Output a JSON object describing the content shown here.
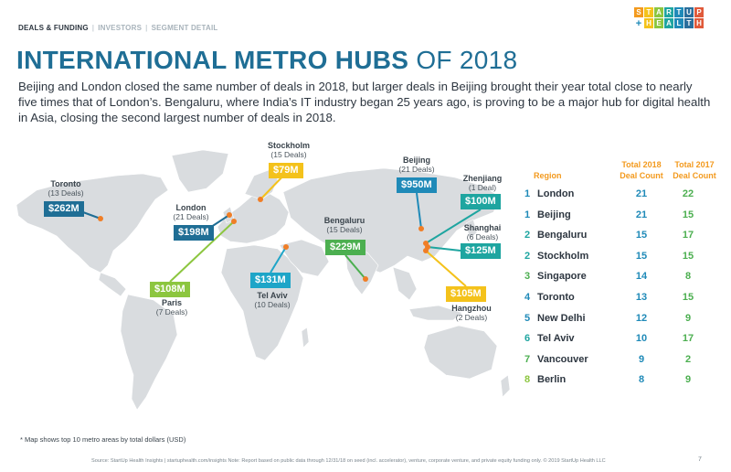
{
  "nav": {
    "items": [
      {
        "label": "DEALS & FUNDING",
        "active": true
      },
      {
        "label": "INVESTORS",
        "active": false
      },
      {
        "label": "SEGMENT DETAIL",
        "active": false
      }
    ]
  },
  "logo": {
    "top": [
      "S",
      "T",
      "A",
      "R",
      "T",
      "U",
      "P"
    ],
    "plus": "+",
    "bottom": [
      "H",
      "E",
      "A",
      "L",
      "T",
      "H"
    ],
    "colors": [
      "#f39a1e",
      "#f4c21b",
      "#8cc63f",
      "#1ea5a0",
      "#1f8ab8",
      "#2a6e9c",
      "#e05a3a"
    ]
  },
  "title": {
    "bold": "INTERNATIONAL METRO HUBS",
    "thin": " OF 2018"
  },
  "subtitle": "Beijing and London closed the same number of deals in 2018, but larger deals in Beijing brought their year total close to nearly five times that of London’s. Bengaluru, where India’s IT industry began 25 years ago, is proving to be a major hub for digital health in Asia, closing the second largest number of deals in 2018.",
  "map_labels": [
    {
      "id": "toronto",
      "name": "Toronto",
      "deals": "(13 Deals)",
      "amount": "$262M",
      "color": "#1f6e95"
    },
    {
      "id": "london",
      "name": "London",
      "deals": "(21 Deals)",
      "amount": "$198M",
      "color": "#1f6e95"
    },
    {
      "id": "stockholm",
      "name": "Stockholm",
      "deals": "(15 Deals)",
      "amount": "$79M",
      "color": "#f4c21b"
    },
    {
      "id": "paris",
      "name": "Paris",
      "deals": "(7 Deals)",
      "amount": "$108M",
      "color": "#8cc63f"
    },
    {
      "id": "telaviv",
      "name": "Tel Aviv",
      "deals": "(10 Deals)",
      "amount": "$131M",
      "color": "#1ea5c8"
    },
    {
      "id": "bengaluru",
      "name": "Bengaluru",
      "deals": "(15 Deals)",
      "amount": "$229M",
      "color": "#4caf50"
    },
    {
      "id": "beijing",
      "name": "Beijing",
      "deals": "(21 Deals)",
      "amount": "$950M",
      "color": "#1f8ab8"
    },
    {
      "id": "zhenjiang",
      "name": "Zhenjiang",
      "deals": "(1 Deal)",
      "amount": "$100M",
      "color": "#1ea5a0"
    },
    {
      "id": "shanghai",
      "name": "Shanghai",
      "deals": "(6 Deals)",
      "amount": "$125M",
      "color": "#1ea5a0"
    },
    {
      "id": "hangzhou",
      "name": "Hangzhou",
      "deals": "(2 Deals)",
      "amount": "$105M",
      "color": "#f4c21b"
    }
  ],
  "table": {
    "headers": {
      "region": "Region",
      "y2018": "Total 2018\nDeal Count",
      "y2017": "Total 2017\nDeal Count"
    },
    "rank_color": "#1f8ab8",
    "v2_color": "#4caf50"
  },
  "chart_data": {
    "type": "table",
    "columns": [
      "Rank",
      "Region",
      "Total 2018 Deal Count",
      "Total 2017 Deal Count"
    ],
    "rows": [
      {
        "rank": "1",
        "region": "London",
        "d2018": "21",
        "d2017": "22"
      },
      {
        "rank": "1",
        "region": "Beijing",
        "d2018": "21",
        "d2017": "15"
      },
      {
        "rank": "2",
        "region": "Bengaluru",
        "d2018": "15",
        "d2017": "17"
      },
      {
        "rank": "2",
        "region": "Stockholm",
        "d2018": "15",
        "d2017": "15"
      },
      {
        "rank": "3",
        "region": "Singapore",
        "d2018": "14",
        "d2017": "8"
      },
      {
        "rank": "4",
        "region": "Toronto",
        "d2018": "13",
        "d2017": "15"
      },
      {
        "rank": "5",
        "region": "New Delhi",
        "d2018": "12",
        "d2017": "9"
      },
      {
        "rank": "6",
        "region": "Tel Aviv",
        "d2018": "10",
        "d2017": "17"
      },
      {
        "rank": "7",
        "region": "Vancouver",
        "d2018": "9",
        "d2017": "2"
      },
      {
        "rank": "8",
        "region": "Berlin",
        "d2018": "8",
        "d2017": "9"
      }
    ],
    "rank_colors": [
      "#1f8ab8",
      "#1f8ab8",
      "#1ea5a0",
      "#1ea5a0",
      "#4caf50",
      "#1f8ab8",
      "#1f8ab8",
      "#1ea5a0",
      "#4caf50",
      "#8cc63f"
    ]
  },
  "note": "* Map shows top 10 metro areas by total dollars (USD)",
  "source": "Source: StartUp Health Insights | startuphealth.com/insights  Note: Report based on public data through 12/31/18 on seed (incl. accelerator), venture, corporate venture, and private equity funding only. © 2019 StartUp Health LLC",
  "page_number": "7"
}
